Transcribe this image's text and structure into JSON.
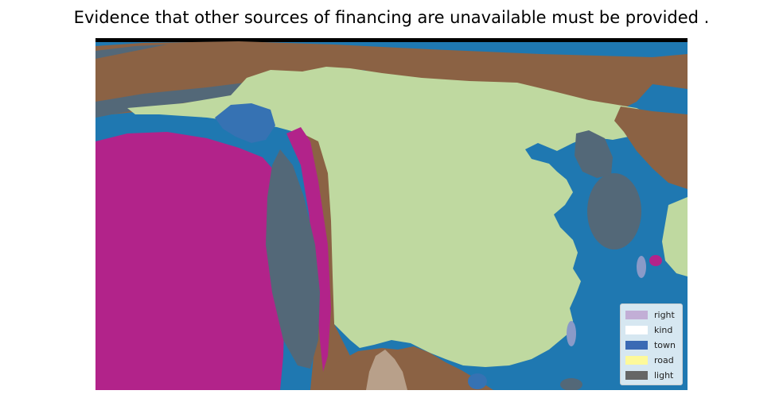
{
  "title": "Evidence that other sources of financing are unavailable must be provided .",
  "legend": {
    "items": [
      {
        "label": "right",
        "color": "#c2aed6"
      },
      {
        "label": "kind",
        "color": "#ffffff"
      },
      {
        "label": "town",
        "color": "#3b6ab4"
      },
      {
        "label": "road",
        "color": "#fdf99a"
      },
      {
        "label": "light",
        "color": "#666666"
      }
    ]
  },
  "colors": {
    "sea": "#1f78b1",
    "land": "#bfd9a0",
    "brown": "#8b6244",
    "slate": "#536878",
    "magenta": "#b2238a",
    "blue_patch": "#3672b3",
    "tan": "#b8a08a",
    "lavender": "#8a9ac8"
  }
}
